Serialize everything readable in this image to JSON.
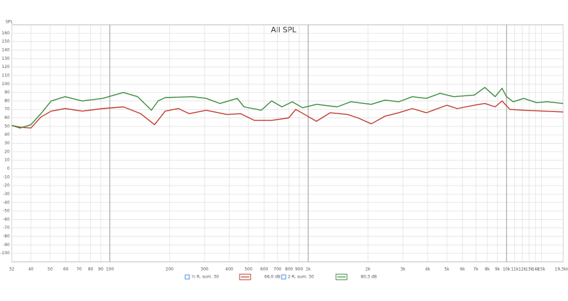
{
  "chart_data": {
    "type": "line",
    "title": "All SPL",
    "y_label": "SPL",
    "xscale": "log",
    "grid": true,
    "xlim": [
      32,
      19300
    ],
    "ylim": [
      -110,
      170
    ],
    "xticks": [
      32,
      40,
      50,
      60,
      70,
      80,
      90,
      100,
      200,
      300,
      400,
      500,
      600,
      700,
      800,
      900,
      {
        "value": 1000,
        "label": "1k"
      },
      {
        "value": 2000,
        "label": "2k"
      },
      {
        "value": 3000,
        "label": "3k"
      },
      {
        "value": 4000,
        "label": "4k"
      },
      {
        "value": 5000,
        "label": "5k"
      },
      {
        "value": 6000,
        "label": "6k"
      },
      {
        "value": 7000,
        "label": "7k"
      },
      {
        "value": 8000,
        "label": "8k"
      },
      {
        "value": 9000,
        "label": "9k"
      },
      {
        "value": 10000,
        "label": "10k"
      },
      {
        "value": 11000,
        "label": "11k"
      },
      {
        "value": 12000,
        "label": "12k"
      },
      {
        "value": 13000,
        "label": "13k"
      },
      {
        "value": 14000,
        "label": "14k"
      },
      {
        "value": 15000,
        "label": "15k"
      },
      {
        "value": 19300,
        "label": "19,3kHz"
      }
    ],
    "yticks": [
      -100,
      -90,
      -80,
      -70,
      -60,
      -50,
      -40,
      -30,
      -20,
      -10,
      0,
      10,
      20,
      30,
      40,
      50,
      60,
      70,
      80,
      90,
      100,
      110,
      120,
      130,
      140,
      150,
      160
    ],
    "series": [
      {
        "name": "½ R, sum. 30",
        "color": "#c0392b",
        "readout": "66,0 dB",
        "x": [
          32,
          35.3,
          40,
          44.9,
          50.6,
          59.5,
          72.6,
          92,
          117,
          143,
          168,
          190,
          222,
          251,
          306,
          389,
          456,
          536,
          654,
          798,
          866,
          976,
          1100,
          1290,
          1580,
          1780,
          2080,
          2440,
          2860,
          3350,
          3940,
          5000,
          5640,
          6890,
          7770,
          8760,
          9490,
          10400,
          12200,
          15400,
          19300
        ],
        "values": [
          51,
          49,
          48,
          61,
          68,
          71,
          68,
          71,
          73,
          65,
          52,
          68,
          71,
          65,
          69,
          64,
          65,
          57,
          57,
          60,
          70,
          63,
          56,
          66,
          64,
          60,
          53,
          62,
          66,
          71,
          66,
          75,
          71,
          75,
          77,
          73,
          80,
          70,
          69,
          68,
          67
        ]
      },
      {
        "name": "2·R, sum. 30",
        "color": "#3a8a3a",
        "readout": "80,3 dB",
        "x": [
          32,
          35.3,
          40,
          44.9,
          50.6,
          59.5,
          72.6,
          92,
          117,
          138,
          162,
          175,
          190,
          261,
          306,
          359,
          439,
          475,
          580,
          654,
          737,
          831,
          938,
          1100,
          1400,
          1640,
          2080,
          2440,
          2860,
          3350,
          3940,
          4620,
          5420,
          6890,
          7770,
          8760,
          9490,
          10000,
          10800,
          12200,
          14200,
          16000,
          19300
        ],
        "values": [
          51,
          48,
          52,
          65,
          80,
          85,
          80,
          83,
          90,
          85,
          69,
          80,
          84,
          85,
          83,
          77,
          83,
          73,
          69,
          80,
          73,
          79,
          72,
          76,
          73,
          79,
          76,
          81,
          79,
          85,
          83,
          89,
          85,
          87,
          96,
          85,
          95,
          85,
          79,
          83,
          78,
          79,
          77
        ]
      }
    ]
  }
}
